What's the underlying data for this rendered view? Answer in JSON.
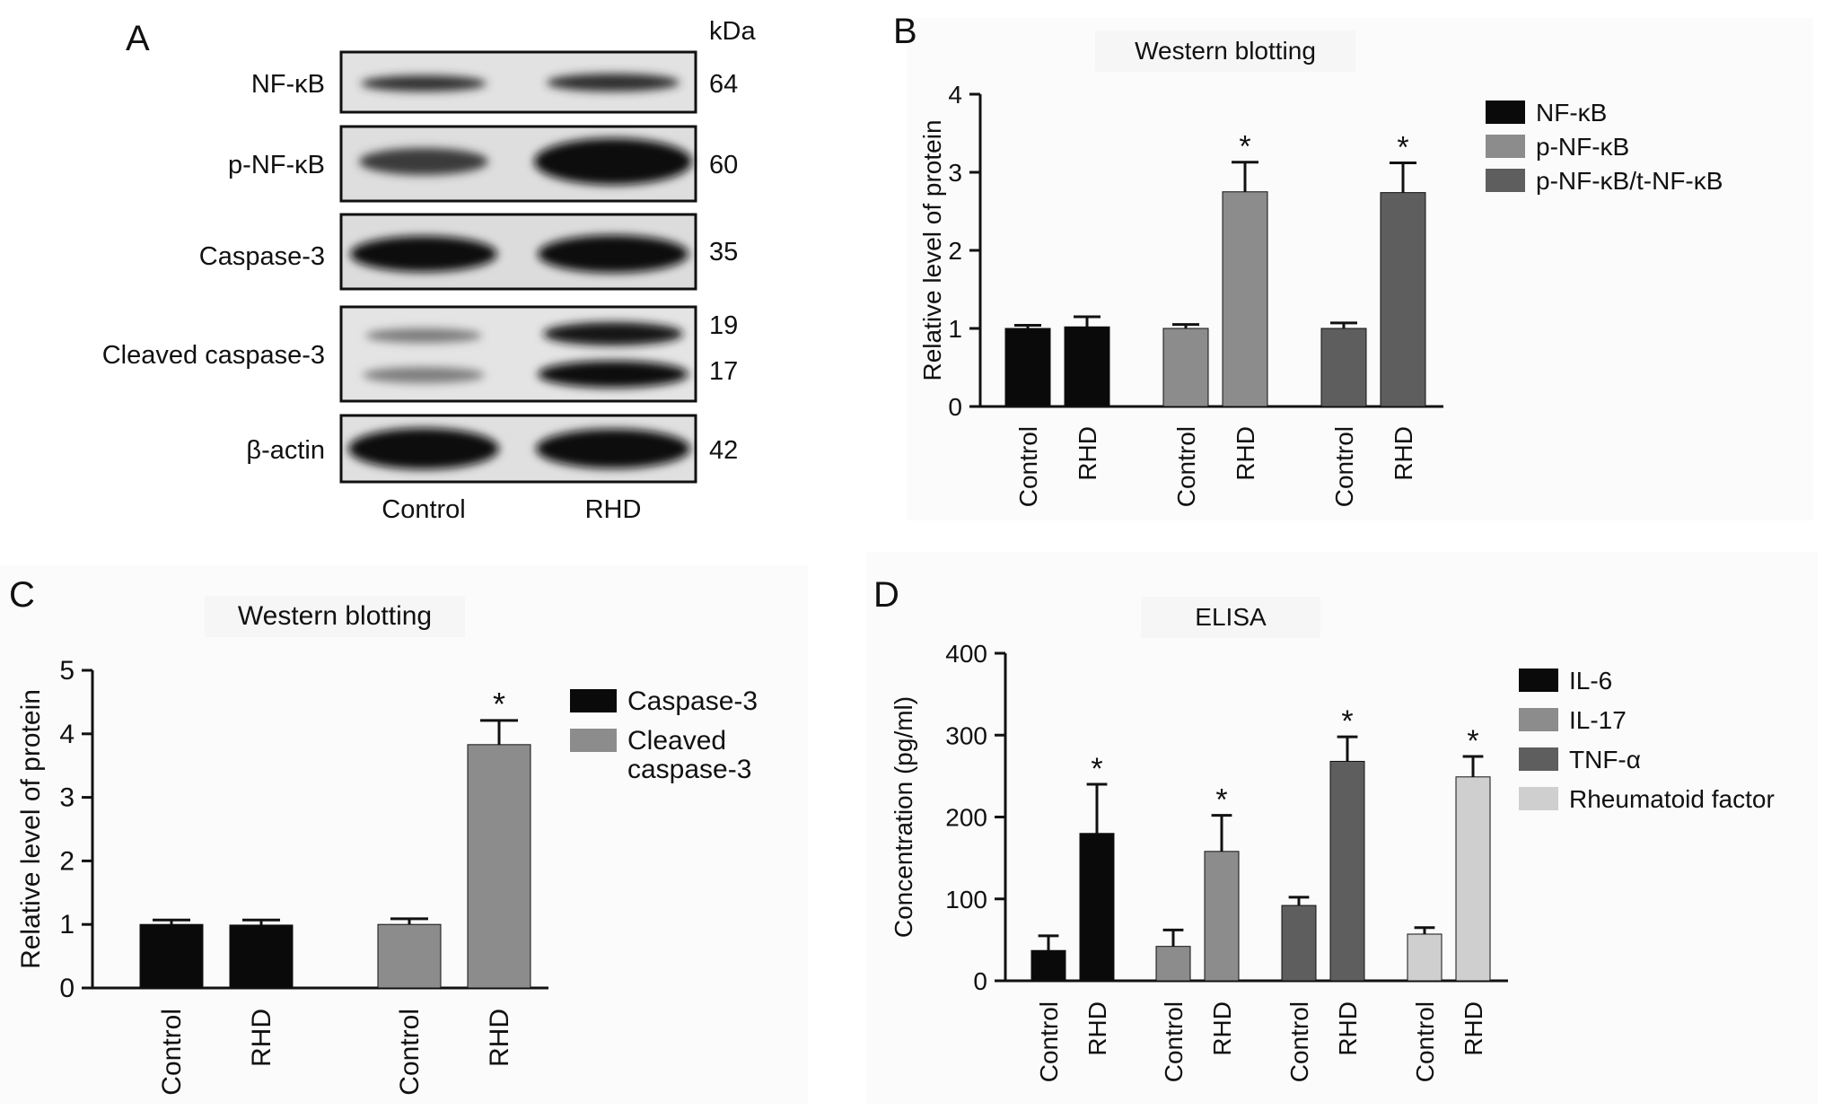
{
  "panel_a": {
    "letter": "A",
    "kda_header": "kDa",
    "row_labels": [
      "NF-κB",
      "p-NF-κB",
      "Caspase-3",
      "Cleaved caspase-3",
      "β-actin"
    ],
    "kda_values": [
      "64",
      "60",
      "35",
      "19",
      "17",
      "42"
    ],
    "lane_labels": [
      "Control",
      "RHD"
    ]
  },
  "panel_letters": {
    "b": "B",
    "c": "C",
    "d": "D"
  },
  "chart_data": [
    {
      "type": "bar",
      "panel": "B",
      "title": "Western blotting",
      "ylabel": "Relative level of protein",
      "ylim": [
        0,
        4
      ],
      "yticks": [
        0,
        1,
        2,
        3,
        4
      ],
      "categories": [
        "Control",
        "RHD"
      ],
      "series": [
        {
          "name": "NF-κB",
          "color": "#0a0a0a",
          "values": [
            1.0,
            1.02
          ],
          "errors": [
            0.04,
            0.13
          ],
          "significant": [
            false,
            false
          ]
        },
        {
          "name": "p-NF-κB",
          "color": "#8c8c8c",
          "values": [
            1.0,
            2.75
          ],
          "errors": [
            0.05,
            0.38
          ],
          "significant": [
            false,
            true
          ]
        },
        {
          "name": "p-NF-κB/t-NF-κB",
          "color": "#5e5e5e",
          "values": [
            1.0,
            2.74
          ],
          "errors": [
            0.07,
            0.38
          ],
          "significant": [
            false,
            true
          ]
        }
      ],
      "sig_marker": "*",
      "legend": "right"
    },
    {
      "type": "bar",
      "panel": "C",
      "title": "Western blotting",
      "ylabel": "Relative level of protein",
      "ylim": [
        0,
        5
      ],
      "yticks": [
        0,
        1,
        2,
        3,
        4,
        5
      ],
      "categories": [
        "Control",
        "RHD"
      ],
      "series": [
        {
          "name": "Caspase-3",
          "color": "#0a0a0a",
          "values": [
            1.0,
            0.99
          ],
          "errors": [
            0.07,
            0.08
          ],
          "significant": [
            false,
            false
          ]
        },
        {
          "name": "Cleaved caspase-3",
          "color": "#8c8c8c",
          "values": [
            1.0,
            3.83
          ],
          "errors": [
            0.09,
            0.38
          ],
          "significant": [
            false,
            true
          ]
        }
      ],
      "sig_marker": "*",
      "legend": "right"
    },
    {
      "type": "bar",
      "panel": "D",
      "title": "ELISA",
      "ylabel": "Concentration (pg/ml)",
      "ylim": [
        0,
        400
      ],
      "yticks": [
        0,
        100,
        200,
        300,
        400
      ],
      "categories": [
        "Control",
        "RHD"
      ],
      "series": [
        {
          "name": "IL-6",
          "color": "#0a0a0a",
          "values": [
            37,
            180
          ],
          "errors": [
            18,
            60
          ],
          "significant": [
            false,
            true
          ]
        },
        {
          "name": "IL-17",
          "color": "#8c8c8c",
          "values": [
            42,
            158
          ],
          "errors": [
            20,
            44
          ],
          "significant": [
            false,
            true
          ]
        },
        {
          "name": "TNF-α",
          "color": "#5e5e5e",
          "values": [
            92,
            268
          ],
          "errors": [
            10,
            30
          ],
          "significant": [
            false,
            true
          ]
        },
        {
          "name": "Rheumatoid factor",
          "color": "#cfcfcf",
          "values": [
            57,
            249
          ],
          "errors": [
            8,
            25
          ],
          "significant": [
            false,
            true
          ]
        }
      ],
      "sig_marker": "*",
      "legend": "right"
    }
  ]
}
